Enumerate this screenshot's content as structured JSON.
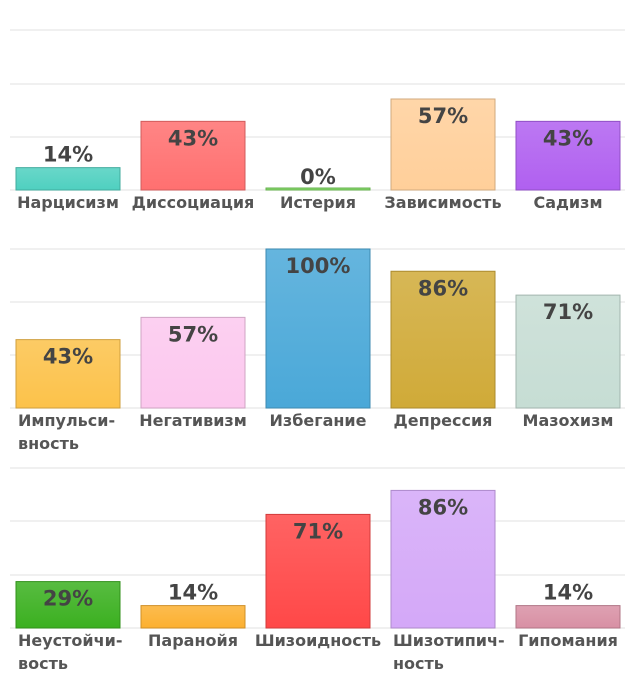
{
  "chart_data": [
    {
      "type": "bar",
      "categories": [
        "Нарцисизм",
        "Диссоциация",
        "Истерия",
        "Зависимость",
        "Садизм"
      ],
      "values": [
        14,
        43,
        0,
        57,
        43
      ],
      "labels": [
        "14%",
        "43%",
        "0%",
        "57%",
        "43%"
      ],
      "colors": [
        "#4fd0c0",
        "#ff7070",
        "#7ed860",
        "#ffcf9a",
        "#b060f0"
      ],
      "ylim": [
        0,
        100
      ],
      "grid": true
    },
    {
      "type": "bar",
      "categories": [
        "Импульси-\nвность",
        "Негативизм",
        "Избегание",
        "Депрессия",
        "Мазохизм"
      ],
      "values": [
        43,
        57,
        100,
        86,
        71
      ],
      "labels": [
        "43%",
        "57%",
        "100%",
        "86%",
        "71%"
      ],
      "colors": [
        "#fcc24a",
        "#fcc8ee",
        "#4aa8d8",
        "#d0aa38",
        "#c6ddd4"
      ],
      "ylim": [
        0,
        100
      ],
      "grid": true
    },
    {
      "type": "bar",
      "categories": [
        "Неустойчи-\nвость",
        "Паранойя",
        "Шизоидность",
        "Шизотипич-\nность",
        "Гипомания"
      ],
      "values": [
        29,
        14,
        71,
        86,
        14
      ],
      "labels": [
        "29%",
        "14%",
        "71%",
        "86%",
        "14%"
      ],
      "colors": [
        "#3bb020",
        "#fcb030",
        "#ff4848",
        "#d4a8f8",
        "#d890a4"
      ],
      "ylim": [
        0,
        100
      ],
      "grid": true
    }
  ]
}
